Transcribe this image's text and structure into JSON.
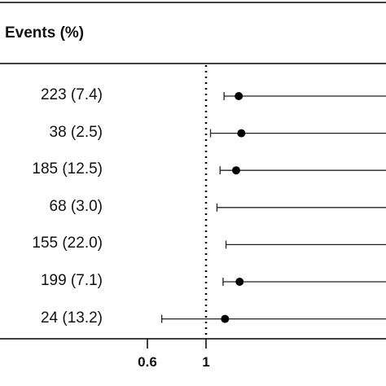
{
  "header": {
    "events_label": "Events (%)"
  },
  "chart_data": {
    "type": "forest",
    "title": "",
    "xlabel": "",
    "reference_line": 1,
    "x_scale": "log",
    "x_ticks": [
      0.6,
      1
    ],
    "x_tick_labels": [
      "0.6",
      "1"
    ],
    "x_range_visible": [
      0.5,
      1.45
    ],
    "rows": [
      {
        "events": "223 (7.4)",
        "estimate": 1.33,
        "ci_low": 1.17,
        "ci_high": null
      },
      {
        "events": "38 (2.5)",
        "estimate": 1.36,
        "ci_low": 1.04,
        "ci_high": null
      },
      {
        "events": "185 (12.5)",
        "estimate": 1.3,
        "ci_low": 1.13,
        "ci_high": null
      },
      {
        "events": "68 (3.0)",
        "estimate": null,
        "ci_low": 1.1,
        "ci_high": null
      },
      {
        "events": "155 (22.0)",
        "estimate": null,
        "ci_low": 1.19,
        "ci_high": null
      },
      {
        "events": "199 (7.1)",
        "estimate": 1.34,
        "ci_low": 1.16,
        "ci_high": null
      },
      {
        "events": "24 (13.2)",
        "estimate": 1.18,
        "ci_low": 0.68,
        "ci_high": null
      }
    ]
  }
}
